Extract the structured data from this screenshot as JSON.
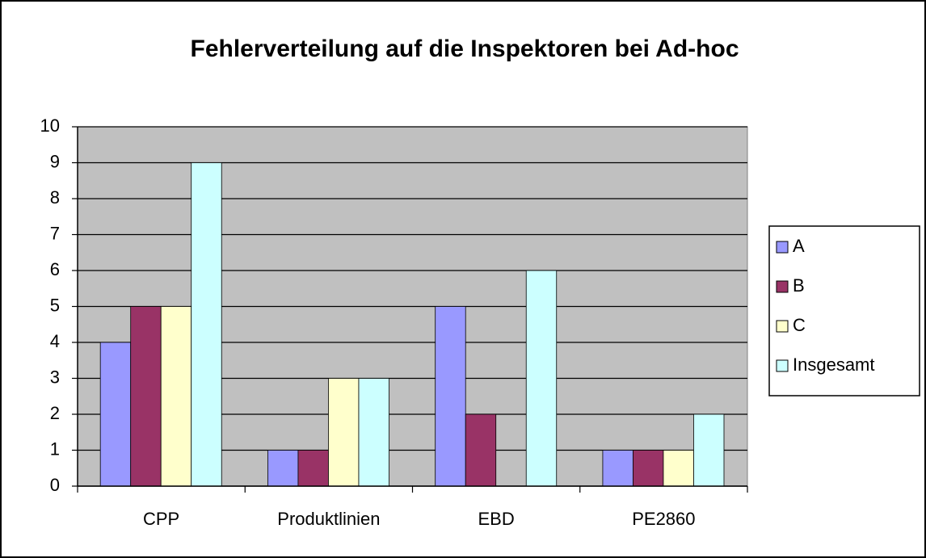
{
  "chart_data": {
    "type": "bar",
    "title": "Fehlerverteilung auf die Inspektoren bei Ad-hoc",
    "categories": [
      "CPP",
      "Produktlinien",
      "EBD",
      "PE2860"
    ],
    "series": [
      {
        "name": "A",
        "color": "#9999ff",
        "values": [
          4,
          1,
          5,
          1
        ]
      },
      {
        "name": "B",
        "color": "#993366",
        "values": [
          5,
          1,
          2,
          1
        ]
      },
      {
        "name": "C",
        "color": "#ffffcc",
        "values": [
          5,
          3,
          0,
          1
        ]
      },
      {
        "name": "Insgesamt",
        "color": "#ccffff",
        "values": [
          9,
          3,
          6,
          2
        ]
      }
    ],
    "ylim": [
      0,
      10
    ],
    "yticks": [
      0,
      1,
      2,
      3,
      4,
      5,
      6,
      7,
      8,
      9,
      10
    ],
    "grid": true,
    "legend": "right"
  }
}
